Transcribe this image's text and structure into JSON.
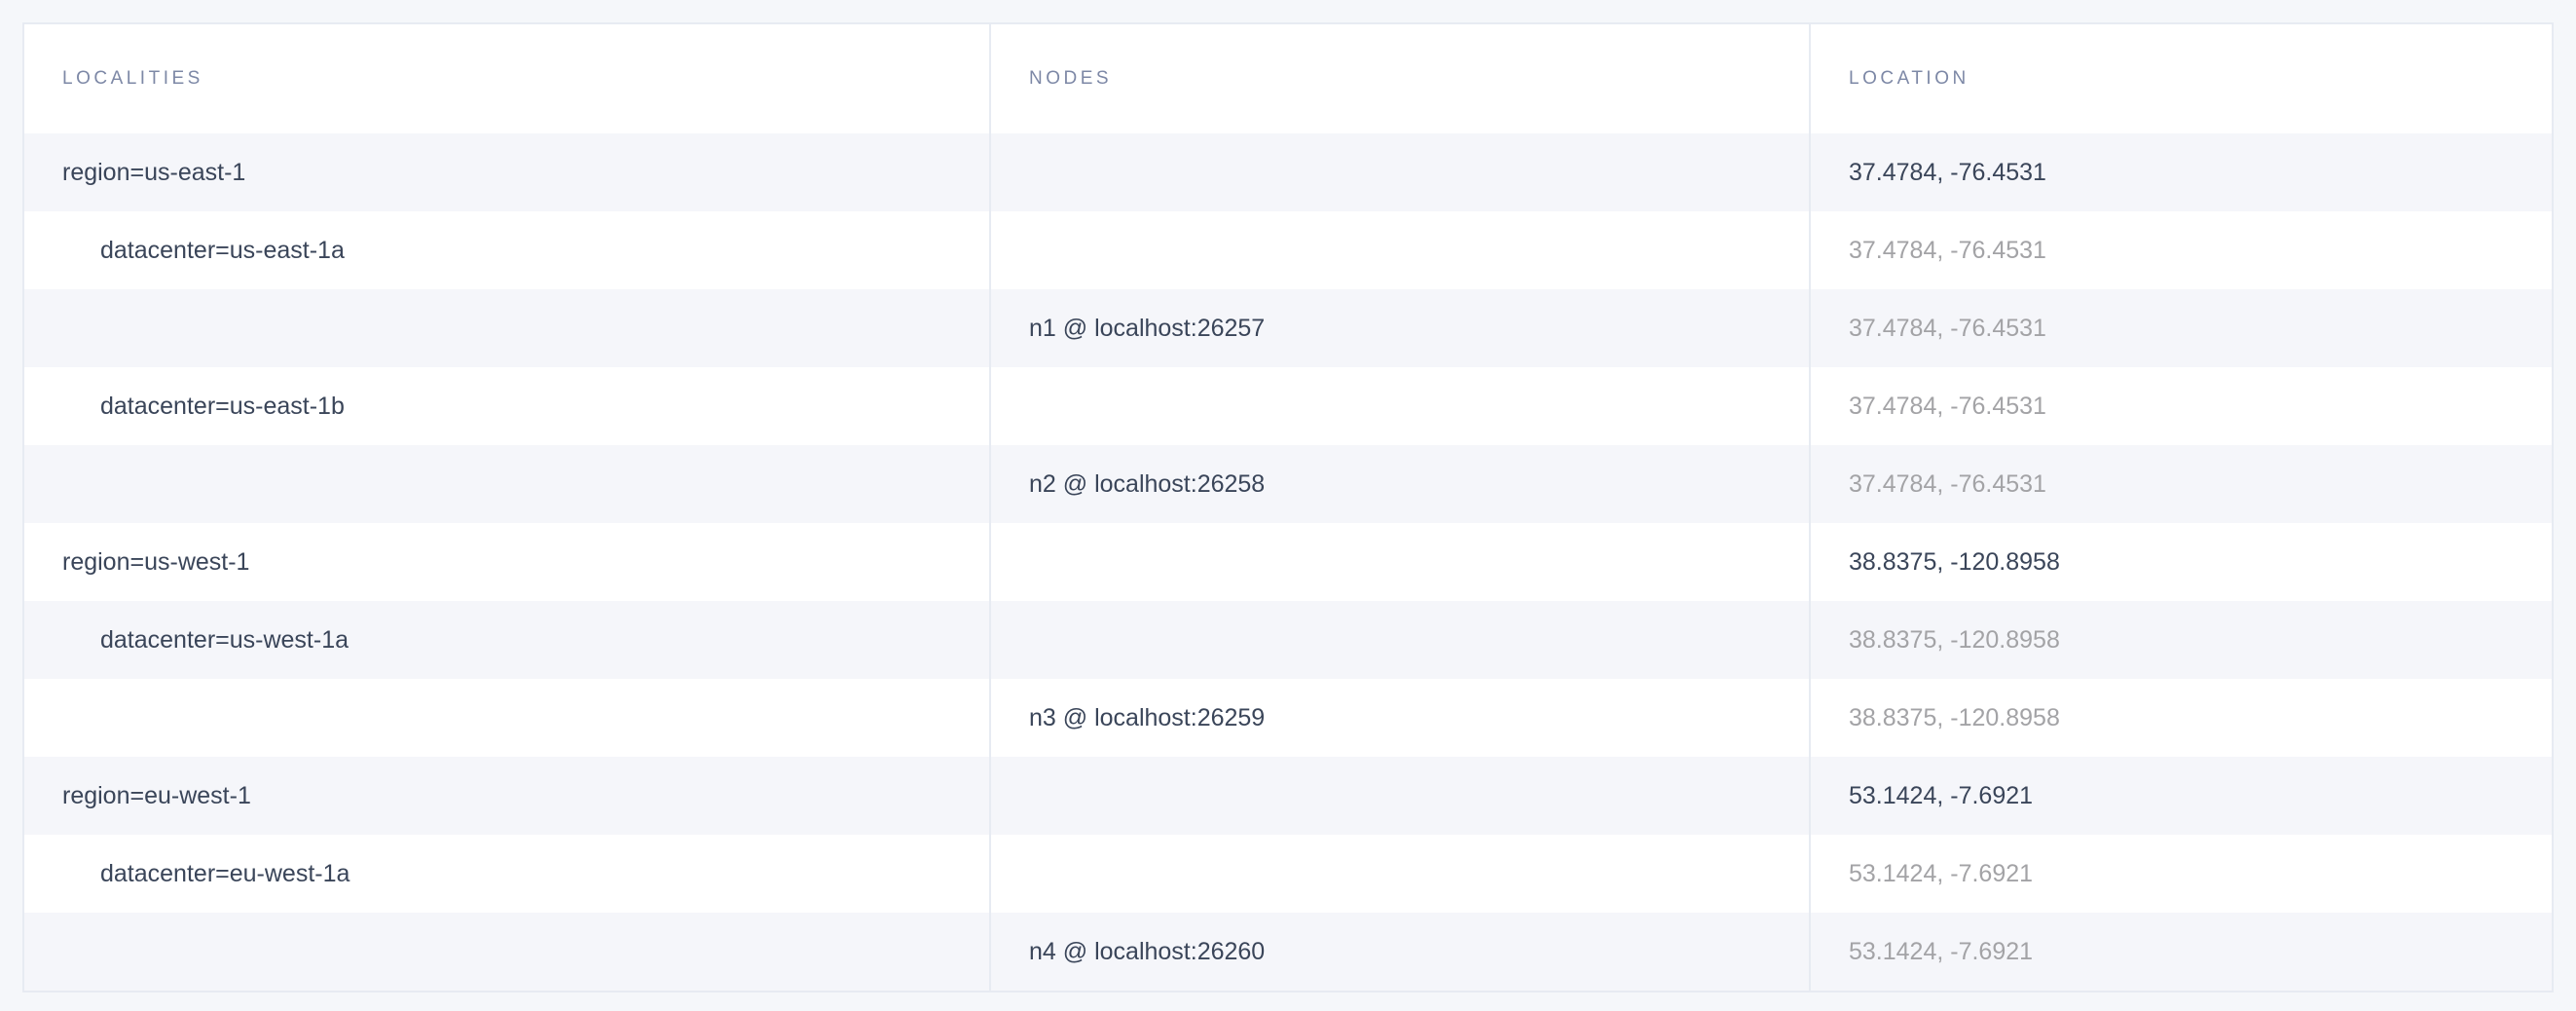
{
  "columns": {
    "localities": "LOCALITIES",
    "nodes": "NODES",
    "location": "LOCATION"
  },
  "rows": [
    {
      "locality": "region=us-east-1",
      "level": 0,
      "node": "",
      "location": "37.4784, -76.4531",
      "muted": false
    },
    {
      "locality": "datacenter=us-east-1a",
      "level": 1,
      "node": "",
      "location": "37.4784, -76.4531",
      "muted": true
    },
    {
      "locality": "",
      "level": 2,
      "node": "n1 @ localhost:26257",
      "location": "37.4784, -76.4531",
      "muted": true
    },
    {
      "locality": "datacenter=us-east-1b",
      "level": 1,
      "node": "",
      "location": "37.4784, -76.4531",
      "muted": true
    },
    {
      "locality": "",
      "level": 2,
      "node": "n2 @ localhost:26258",
      "location": "37.4784, -76.4531",
      "muted": true
    },
    {
      "locality": "region=us-west-1",
      "level": 0,
      "node": "",
      "location": "38.8375, -120.8958",
      "muted": false
    },
    {
      "locality": "datacenter=us-west-1a",
      "level": 1,
      "node": "",
      "location": "38.8375, -120.8958",
      "muted": true
    },
    {
      "locality": "",
      "level": 2,
      "node": "n3 @ localhost:26259",
      "location": "38.8375, -120.8958",
      "muted": true
    },
    {
      "locality": "region=eu-west-1",
      "level": 0,
      "node": "",
      "location": "53.1424, -7.6921",
      "muted": false
    },
    {
      "locality": "datacenter=eu-west-1a",
      "level": 1,
      "node": "",
      "location": "53.1424, -7.6921",
      "muted": true
    },
    {
      "locality": "",
      "level": 2,
      "node": "n4 @ localhost:26260",
      "location": "53.1424, -7.6921",
      "muted": true
    }
  ]
}
